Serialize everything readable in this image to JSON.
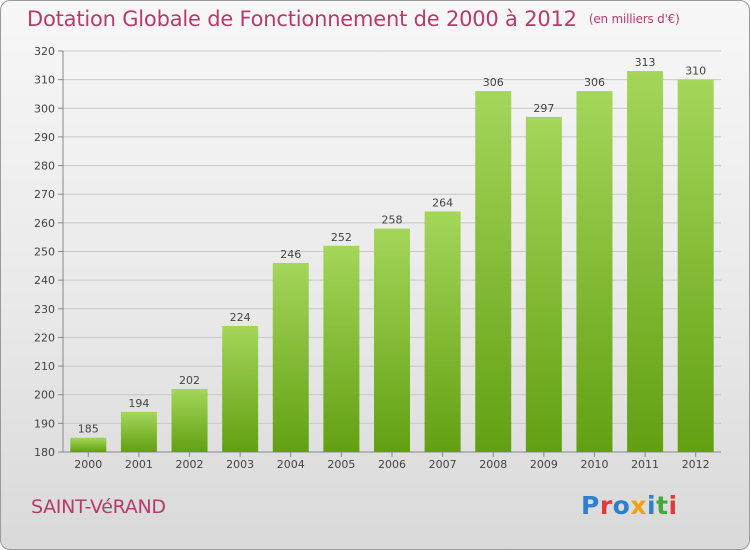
{
  "title": "Dotation Globale de Fonctionnement de 2000 à 2012",
  "unit": "(en milliers d'€)",
  "commune": "SAINT-VéRAND",
  "logo": "Proxiti",
  "colors": {
    "title": "#b83a6c",
    "bar_top": "#a4d65a",
    "bar_bottom": "#62a012",
    "logo_letters": [
      "#2e7fd1",
      "#e23a3a",
      "#2e7fd1",
      "#f2a10f",
      "#2e7fd1",
      "#45a83a",
      "#e23a3a"
    ]
  },
  "chart_data": {
    "type": "bar",
    "categories": [
      "2000",
      "2001",
      "2002",
      "2003",
      "2004",
      "2005",
      "2006",
      "2007",
      "2008",
      "2009",
      "2010",
      "2011",
      "2012"
    ],
    "values": [
      185,
      194,
      202,
      224,
      246,
      252,
      258,
      264,
      306,
      297,
      306,
      313,
      310
    ],
    "ylim": [
      180,
      320
    ],
    "yticks": [
      180,
      190,
      200,
      210,
      220,
      230,
      240,
      250,
      260,
      270,
      280,
      290,
      300,
      310,
      320
    ],
    "grid": true,
    "data_labels": true
  }
}
